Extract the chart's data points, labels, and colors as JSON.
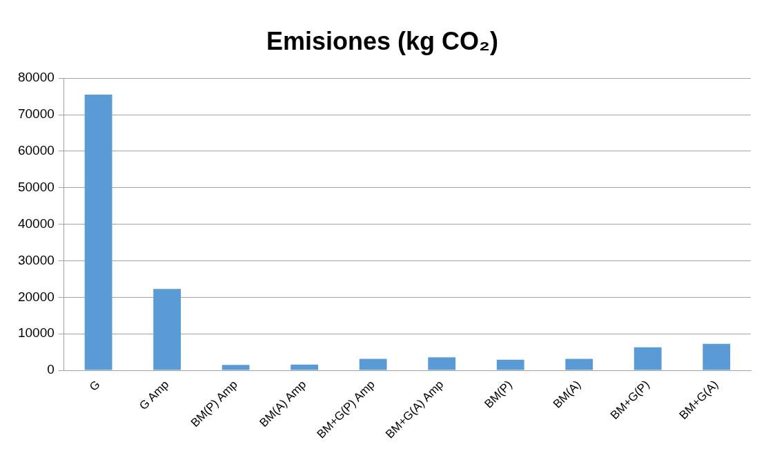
{
  "chart_data": {
    "type": "bar",
    "title": "Emisiones (kg CO₂)",
    "categories": [
      "G",
      "G Amp",
      "BM(P) Amp",
      "BM(A) Amp",
      "BM+G(P) Amp",
      "BM+G(A) Amp",
      "BM(P)",
      "BM(A)",
      "BM+G(P)",
      "BM+G(A)"
    ],
    "values": [
      75500,
      22300,
      1500,
      1600,
      3150,
      3550,
      2900,
      3150,
      6300,
      7250
    ],
    "color": "#5b9bd5",
    "ylim": [
      0,
      80000
    ],
    "yticks": [
      0,
      10000,
      20000,
      30000,
      40000,
      50000,
      60000,
      70000,
      80000
    ],
    "grid": "y",
    "legend": false
  }
}
